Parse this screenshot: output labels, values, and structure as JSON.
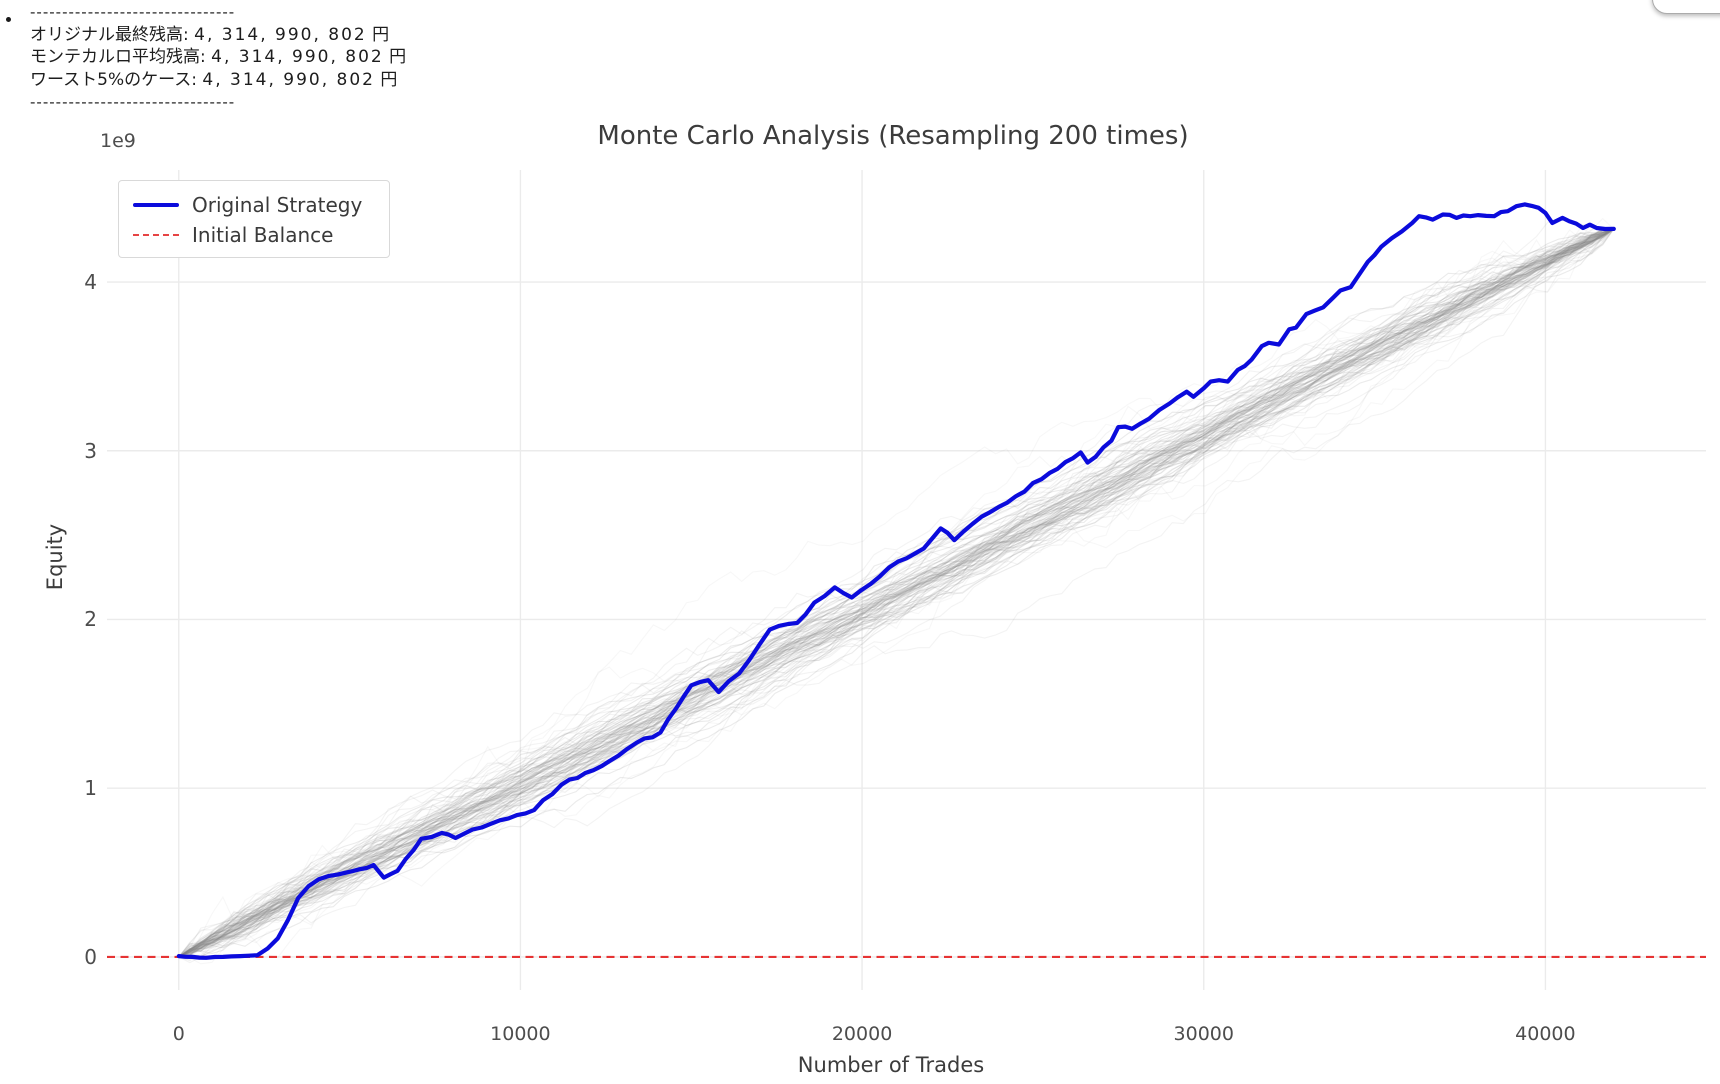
{
  "summary_panel": {
    "bullet": "•",
    "divider_top": "--------------------------------",
    "divider_bottom": "--------------------------------",
    "lines": [
      {
        "label": "オリジナル最終残高:",
        "value": "4, 314, 990, 802",
        "unit": "円"
      },
      {
        "label": "モンテカルロ平均残高:",
        "value": "4, 314, 990, 802",
        "unit": "円"
      },
      {
        "label": "ワースト5%のケース:",
        "value": "4, 314, 990, 802",
        "unit": "円"
      }
    ]
  },
  "chart": {
    "title": "Monte Carlo Analysis (Resampling 200 times)",
    "xlabel": "Number of Trades",
    "ylabel": "Equity",
    "offset_label": "1e9",
    "legend": [
      {
        "label": "Original Strategy",
        "color": "#0b0bdc",
        "style": "solid"
      },
      {
        "label": "Initial Balance",
        "color": "#e64444",
        "style": "dashed"
      }
    ],
    "colors": {
      "original_line": "#0b0bdc",
      "initial_balance_line": "#e63333",
      "mc_paths": "#8a8a8a",
      "grid": "#ebebeb",
      "title_text": "#3c3c3c",
      "tick_text": "#4d4d4d"
    }
  },
  "chart_data": {
    "type": "line",
    "title": "Monte Carlo Analysis (Resampling 200 times)",
    "xlabel": "Number of Trades",
    "ylabel": "Equity",
    "y_unit": "1e9 (offset label shown top-left of axis)",
    "x_ticks": [
      0,
      10000,
      20000,
      30000,
      40000
    ],
    "y_ticks": [
      0,
      1,
      2,
      3,
      4
    ],
    "xlim": [
      -2100,
      44700
    ],
    "ylim_e9": [
      -0.196,
      4.664
    ],
    "grid": true,
    "legend_position": "upper left",
    "reference_line": {
      "name": "Initial Balance",
      "y_e9": 0,
      "color": "red",
      "style": "dashed"
    },
    "monte_carlo_paths": {
      "name": "Resampled equity curves",
      "n_resamples": 200,
      "render_count": 88,
      "color": "#8a8a8a",
      "start": {
        "x": 0,
        "y_e9": 0
      },
      "end": {
        "x": 42000,
        "y_e9": 4.315
      },
      "max_envelope_half_width_e9": 0.3
    },
    "original_strategy": {
      "name": "Original Strategy",
      "color": "#0b0bdc",
      "x": [
        0,
        400,
        800,
        1300,
        1800,
        2300,
        2600,
        2900,
        3200,
        3500,
        3800,
        4100,
        4400,
        4900,
        5300,
        5700,
        6000,
        6400,
        7100,
        7700,
        8100,
        8600,
        9400,
        10400,
        11200,
        11900,
        12600,
        13400,
        14100,
        15000,
        15500,
        15800,
        16400,
        16700,
        17300,
        18100,
        18600,
        19200,
        19700,
        20800,
        21800,
        22300,
        22700,
        23500,
        24500,
        25500,
        26400,
        26600,
        27300,
        27500,
        27900,
        28400,
        29000,
        29500,
        29700,
        30000,
        30200,
        30700,
        31000,
        31400,
        31700,
        31900,
        32200,
        32500,
        32700,
        33000,
        33500,
        33800,
        34000,
        34300,
        34500,
        34800,
        35000,
        35200,
        35500,
        35800,
        36100,
        36300,
        36700,
        37000,
        37400,
        37800,
        38500,
        38900,
        39400,
        39800,
        40000,
        40200,
        40500,
        40700,
        41100,
        41300,
        41500,
        42000
      ],
      "y_e9": [
        0.005,
        0.0,
        -0.005,
        0.0,
        0.005,
        0.01,
        0.05,
        0.11,
        0.22,
        0.35,
        0.42,
        0.46,
        0.48,
        0.5,
        0.52,
        0.545,
        0.47,
        0.51,
        0.7,
        0.735,
        0.705,
        0.755,
        0.81,
        0.87,
        1.02,
        1.09,
        1.16,
        1.27,
        1.33,
        1.61,
        1.64,
        1.57,
        1.68,
        1.76,
        1.94,
        1.98,
        2.1,
        2.19,
        2.13,
        2.31,
        2.42,
        2.54,
        2.47,
        2.61,
        2.73,
        2.87,
        2.99,
        2.93,
        3.06,
        3.14,
        3.13,
        3.19,
        3.28,
        3.35,
        3.32,
        3.37,
        3.41,
        3.41,
        3.48,
        3.54,
        3.62,
        3.64,
        3.63,
        3.72,
        3.73,
        3.81,
        3.85,
        3.91,
        3.95,
        3.97,
        4.03,
        4.12,
        4.16,
        4.21,
        4.26,
        4.3,
        4.35,
        4.39,
        4.37,
        4.4,
        4.38,
        4.39,
        4.39,
        4.42,
        4.46,
        4.44,
        4.41,
        4.35,
        4.38,
        4.36,
        4.32,
        4.34,
        4.32,
        4.315
      ],
      "final_value_label": "4,314,990,802 円"
    }
  }
}
